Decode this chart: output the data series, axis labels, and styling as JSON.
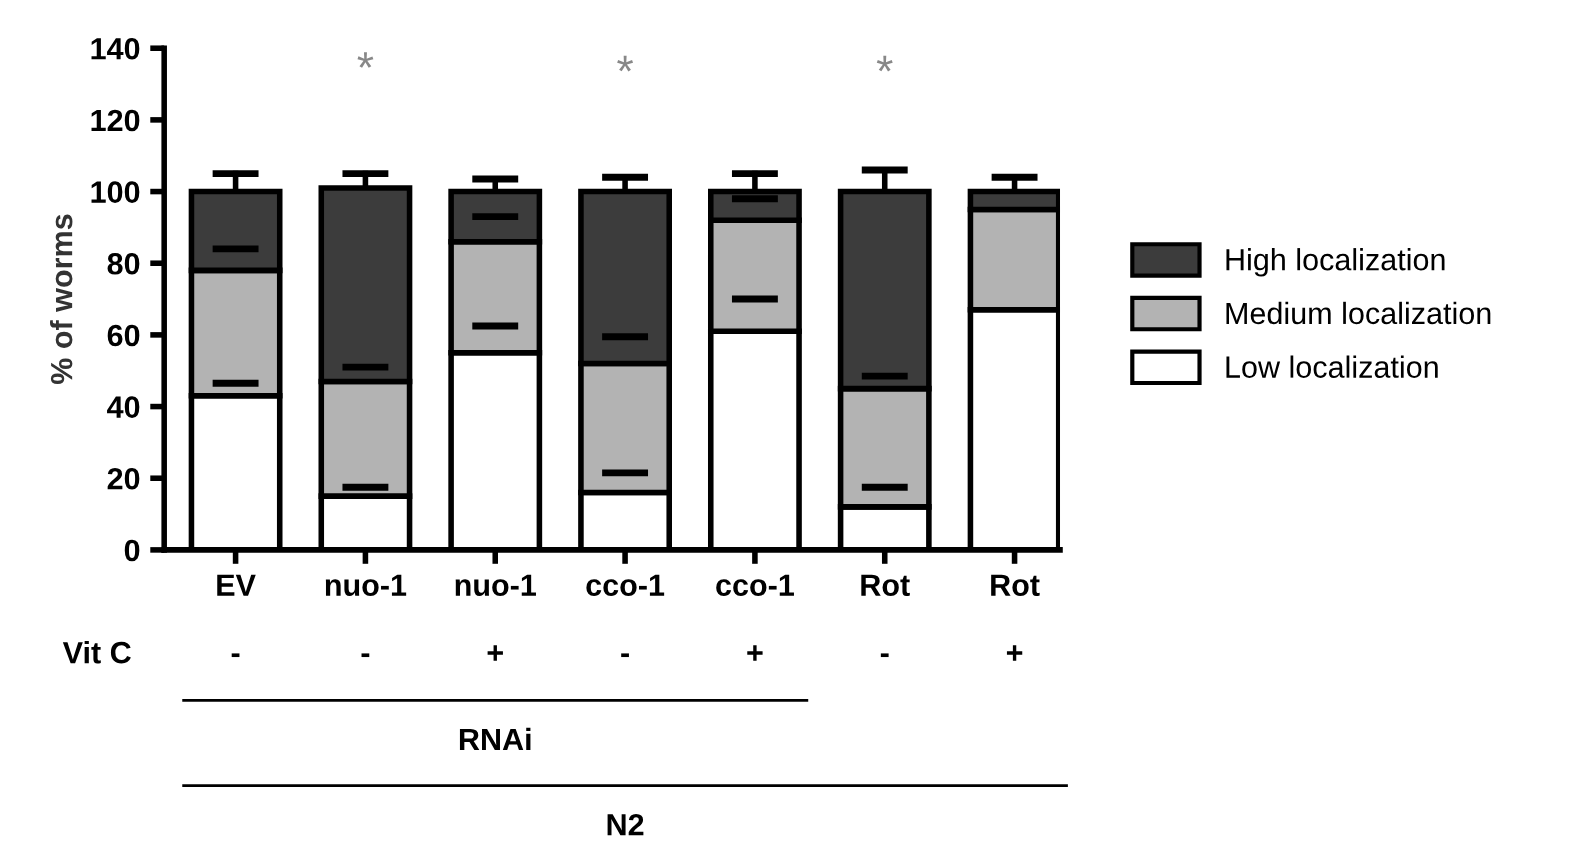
{
  "chart_data": {
    "type": "bar",
    "stacked": true,
    "ylabel": "% of worms",
    "categories": [
      "EV",
      "nuo-1",
      "nuo-1",
      "cco-1",
      "cco-1",
      "Rot",
      "Rot"
    ],
    "series": [
      {
        "name": "Low localization",
        "color": "#ffffff",
        "values": [
          43,
          15,
          55,
          16,
          61,
          12,
          67
        ],
        "errors": [
          [
            43,
            46.5
          ],
          [
            15,
            17.5
          ],
          [
            55,
            62.5
          ],
          [
            16,
            21.5
          ],
          [
            61,
            70
          ],
          [
            12,
            17.5
          ],
          null
        ]
      },
      {
        "name": "Medium localization",
        "color": "#b3b3b3",
        "values": [
          35,
          32,
          31,
          36,
          31,
          33,
          28
        ],
        "errors": [
          [
            78,
            84
          ],
          [
            47,
            51
          ],
          [
            86,
            93
          ],
          [
            52,
            59.5
          ],
          [
            92,
            98
          ],
          [
            45,
            48.5
          ],
          null
        ]
      },
      {
        "name": "High localization",
        "color": "#3c3c3c",
        "values": [
          22,
          54,
          14,
          48,
          8,
          55,
          5
        ],
        "value_labels": [
          null,
          "*",
          null,
          "*",
          null,
          "*",
          null
        ],
        "errors": [
          [
            100,
            105
          ],
          [
            101,
            105
          ],
          [
            100,
            103.5
          ],
          [
            100,
            104
          ],
          [
            100,
            105
          ],
          [
            100,
            106
          ],
          [
            100,
            104
          ]
        ]
      }
    ],
    "ylim": [
      0,
      140
    ],
    "yticks": [
      0,
      20,
      40,
      60,
      80,
      100,
      120,
      140
    ],
    "grid": false,
    "legend": "right",
    "annotations": [
      "Vit C",
      "-",
      "-",
      "+",
      "-",
      "+",
      "-",
      "+",
      "RNAi",
      "N2"
    ]
  }
}
